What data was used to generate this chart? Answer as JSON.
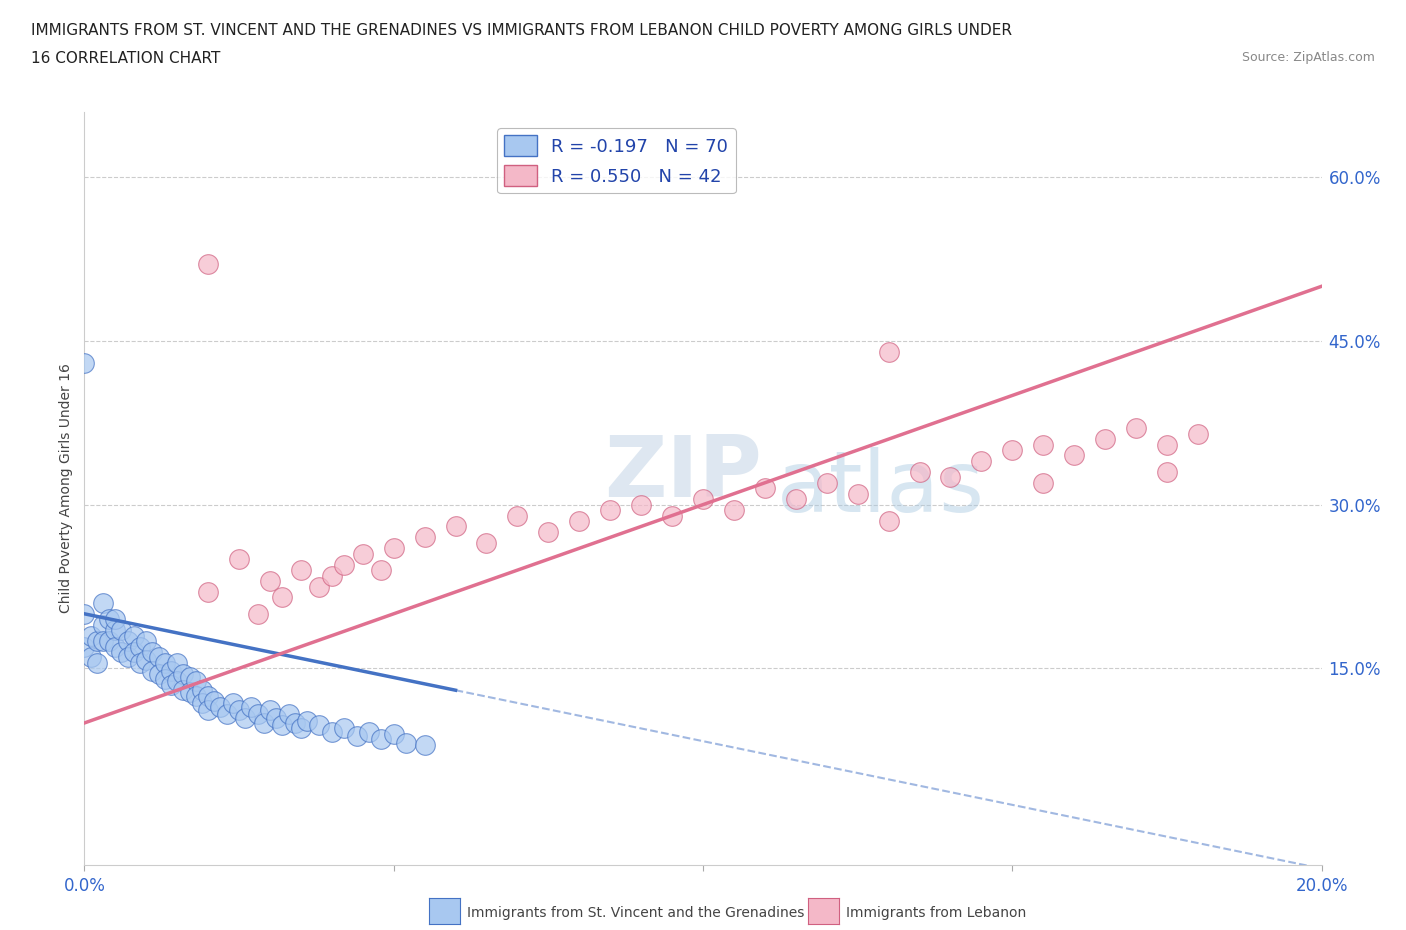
{
  "title_line1": "IMMIGRANTS FROM ST. VINCENT AND THE GRENADINES VS IMMIGRANTS FROM LEBANON CHILD POVERTY AMONG GIRLS UNDER",
  "title_line2": "16 CORRELATION CHART",
  "source": "Source: ZipAtlas.com",
  "ylabel": "Child Poverty Among Girls Under 16",
  "xlim": [
    0.0,
    0.2
  ],
  "ylim": [
    -0.03,
    0.66
  ],
  "ytick_right_values": [
    0.15,
    0.3,
    0.45,
    0.6
  ],
  "ytick_right_labels": [
    "15.0%",
    "30.0%",
    "45.0%",
    "60.0%"
  ],
  "color_vincent": "#a8c8f0",
  "color_vincent_dark": "#4472c4",
  "color_lebanon": "#f4b8c8",
  "color_lebanon_dark": "#d06080",
  "color_lebanon_line": "#e07090",
  "R_vincent": -0.197,
  "N_vincent": 70,
  "R_lebanon": 0.55,
  "N_lebanon": 42,
  "watermark_zip": "ZIP",
  "watermark_atlas": "atlas",
  "legend_label_vincent": "Immigrants from St. Vincent and the Grenadines",
  "legend_label_lebanon": "Immigrants from Lebanon",
  "vincent_x": [
    0.0,
    0.0,
    0.001,
    0.001,
    0.002,
    0.002,
    0.003,
    0.003,
    0.003,
    0.004,
    0.004,
    0.005,
    0.005,
    0.005,
    0.006,
    0.006,
    0.007,
    0.007,
    0.008,
    0.008,
    0.009,
    0.009,
    0.01,
    0.01,
    0.011,
    0.011,
    0.012,
    0.012,
    0.013,
    0.013,
    0.014,
    0.014,
    0.015,
    0.015,
    0.016,
    0.016,
    0.017,
    0.017,
    0.018,
    0.018,
    0.019,
    0.019,
    0.02,
    0.02,
    0.021,
    0.022,
    0.023,
    0.024,
    0.025,
    0.026,
    0.027,
    0.028,
    0.029,
    0.03,
    0.031,
    0.032,
    0.033,
    0.034,
    0.035,
    0.036,
    0.038,
    0.04,
    0.042,
    0.044,
    0.046,
    0.048,
    0.05,
    0.052,
    0.055,
    0.0
  ],
  "vincent_y": [
    0.2,
    0.17,
    0.18,
    0.16,
    0.175,
    0.155,
    0.21,
    0.19,
    0.175,
    0.195,
    0.175,
    0.185,
    0.195,
    0.17,
    0.185,
    0.165,
    0.175,
    0.16,
    0.18,
    0.165,
    0.17,
    0.155,
    0.175,
    0.158,
    0.165,
    0.148,
    0.16,
    0.145,
    0.155,
    0.14,
    0.148,
    0.135,
    0.155,
    0.138,
    0.145,
    0.13,
    0.142,
    0.128,
    0.138,
    0.125,
    0.13,
    0.118,
    0.125,
    0.112,
    0.12,
    0.115,
    0.108,
    0.118,
    0.112,
    0.105,
    0.115,
    0.108,
    0.1,
    0.112,
    0.105,
    0.098,
    0.108,
    0.1,
    0.095,
    0.102,
    0.098,
    0.092,
    0.095,
    0.088,
    0.092,
    0.085,
    0.09,
    0.082,
    0.08,
    0.43
  ],
  "lebanon_x": [
    0.02,
    0.025,
    0.028,
    0.03,
    0.032,
    0.035,
    0.038,
    0.04,
    0.042,
    0.045,
    0.048,
    0.05,
    0.055,
    0.06,
    0.065,
    0.07,
    0.075,
    0.08,
    0.085,
    0.09,
    0.095,
    0.1,
    0.105,
    0.11,
    0.115,
    0.12,
    0.125,
    0.13,
    0.135,
    0.14,
    0.145,
    0.15,
    0.155,
    0.16,
    0.165,
    0.17,
    0.175,
    0.18,
    0.13,
    0.155,
    0.175,
    0.02
  ],
  "lebanon_y": [
    0.22,
    0.25,
    0.2,
    0.23,
    0.215,
    0.24,
    0.225,
    0.235,
    0.245,
    0.255,
    0.24,
    0.26,
    0.27,
    0.28,
    0.265,
    0.29,
    0.275,
    0.285,
    0.295,
    0.3,
    0.29,
    0.305,
    0.295,
    0.315,
    0.305,
    0.32,
    0.31,
    0.285,
    0.33,
    0.325,
    0.34,
    0.35,
    0.355,
    0.345,
    0.36,
    0.37,
    0.355,
    0.365,
    0.44,
    0.32,
    0.33,
    0.52
  ],
  "trend_vincent_x0": 0.0,
  "trend_vincent_y0": 0.2,
  "trend_vincent_x1": 0.06,
  "trend_vincent_y1": 0.13,
  "trend_vincent_dash_x1": 0.2,
  "trend_lebanon_x0": 0.0,
  "trend_lebanon_y0": 0.1,
  "trend_lebanon_x1": 0.2,
  "trend_lebanon_y1": 0.5
}
